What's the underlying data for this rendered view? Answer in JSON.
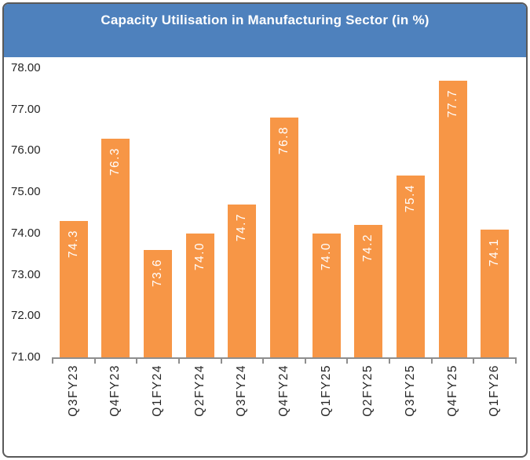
{
  "header": {
    "title": "Capacity Utilisation in Manufacturing Sector (in %)",
    "bg_color": "#4E81BD",
    "text_color": "#FFFFFF"
  },
  "frame": {
    "border_color": "#595959",
    "background": "#FFFFFF"
  },
  "chart_data": {
    "type": "bar",
    "title": "Capacity Utilisation in Manufacturing Sector (in %)",
    "categories": [
      "Q3FY23",
      "Q4FY23",
      "Q1FY24",
      "Q2FY24",
      "Q3FY24",
      "Q4FY24",
      "Q1FY25",
      "Q2FY25",
      "Q3FY25",
      "Q4FY25",
      "Q1FY26"
    ],
    "values": [
      74.3,
      76.3,
      73.6,
      74.0,
      74.7,
      76.8,
      74.0,
      74.2,
      75.4,
      77.7,
      74.1
    ],
    "value_labels": [
      "74.3",
      "76.3",
      "73.6",
      "74.0",
      "74.7",
      "76.8",
      "74.0",
      "74.2",
      "75.4",
      "77.7",
      "74.1"
    ],
    "value_label_position": "inside-end",
    "value_label_rotation": "bottom-to-top",
    "xlabel": "",
    "ylabel": "",
    "ylim": [
      71,
      78
    ],
    "ytick_step": 1,
    "ytick_labels": [
      "78.00",
      "77.00",
      "76.00",
      "75.00",
      "74.00",
      "73.00",
      "72.00",
      "71.00"
    ],
    "grid": false,
    "legend": false,
    "bar_color": "#F79646",
    "value_label_color": "#FFFFFF",
    "axis_line_color": "#8E8E8E",
    "tick_text_color": "#262626"
  }
}
